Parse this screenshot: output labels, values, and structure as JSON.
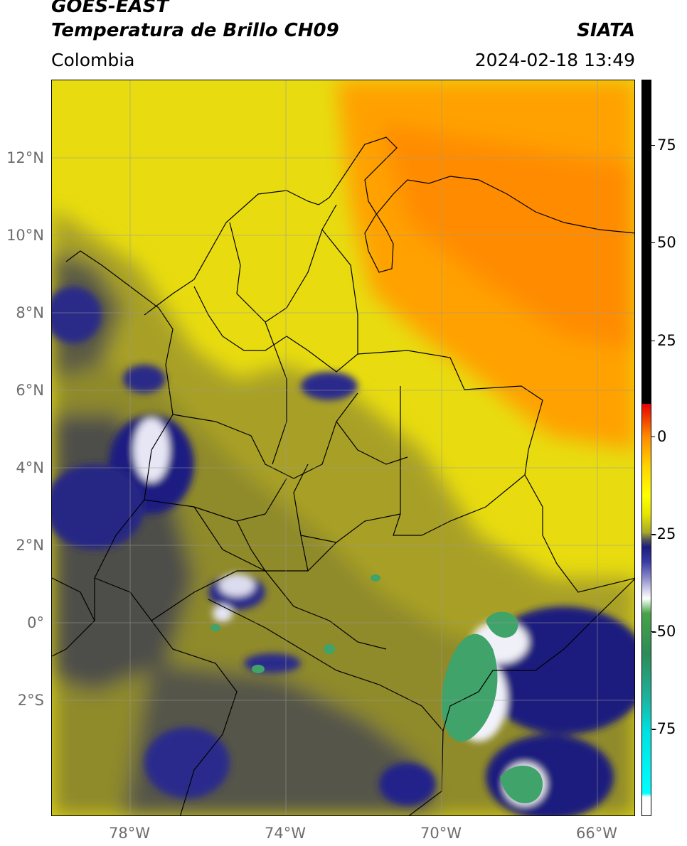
{
  "header": {
    "line1": "GOES-EAST",
    "line2": "Temperatura de Brillo CH09",
    "region": "Colombia",
    "agency": "SIATA",
    "timestamp": "2024-02-18 13:49"
  },
  "map": {
    "extent_lon": [
      -80,
      -65
    ],
    "extent_lat": [
      -5,
      14
    ],
    "lat_labels": [
      "12°N",
      "10°N",
      "8°N",
      "6°N",
      "4°N",
      "2°N",
      "0°",
      "2°S"
    ],
    "lon_labels": [
      "78°W",
      "74°W",
      "70°W",
      "66°W"
    ],
    "colors": {
      "warm_yellow": "#f2e600",
      "orange": "#ff9900",
      "olive": "#a6a021",
      "dark_gray": "#55553a",
      "navy": "#1c1c7e",
      "white": "#ffffff",
      "green": "#3fa36a"
    }
  },
  "colorbar": {
    "labels": [
      "75",
      "50",
      "25",
      "0",
      "-25",
      "-50",
      "-75"
    ],
    "range": [
      -90,
      90
    ]
  }
}
